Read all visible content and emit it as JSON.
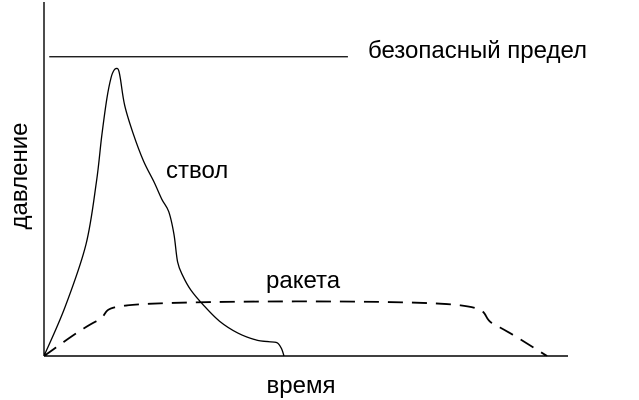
{
  "chart_data": {
    "type": "line",
    "xlabel": "время",
    "ylabel": "давление",
    "grid": false,
    "legend": "none",
    "xlim": [
      0,
      100
    ],
    "ylim": [
      0,
      100
    ],
    "series": [
      {
        "name": "безопасный предел",
        "style": "solid",
        "x": [
          1,
          58
        ],
        "y": [
          86,
          86
        ]
      },
      {
        "name": "ствол",
        "style": "solid",
        "x": [
          0,
          4,
          8,
          10,
          11,
          12,
          12.8,
          13.4,
          14,
          14.3,
          14.6,
          15.4,
          17,
          19,
          21,
          22.5,
          23.8,
          24.8,
          25.5,
          26.5,
          28,
          30.5,
          33.5,
          37,
          40.5,
          43,
          44.5,
          45.3,
          45.8
        ],
        "y": [
          0,
          14,
          32,
          50,
          63,
          74,
          80,
          82.2,
          82.6,
          81.8,
          79.5,
          72,
          64,
          56,
          50,
          45,
          41.5,
          35,
          27,
          23,
          19,
          14.5,
          10,
          6.6,
          4.6,
          4.1,
          3.8,
          2.2,
          0
        ]
      },
      {
        "name": "ракета",
        "style": "dashed",
        "x": [
          0,
          10,
          20,
          76,
          86,
          96
        ],
        "y": [
          0,
          10,
          15,
          15,
          9,
          0
        ]
      }
    ],
    "annotations": [
      {
        "text": "безопасный предел",
        "series": 0
      },
      {
        "text": "ствол",
        "series": 1
      },
      {
        "text": "ракета",
        "series": 2
      }
    ]
  }
}
